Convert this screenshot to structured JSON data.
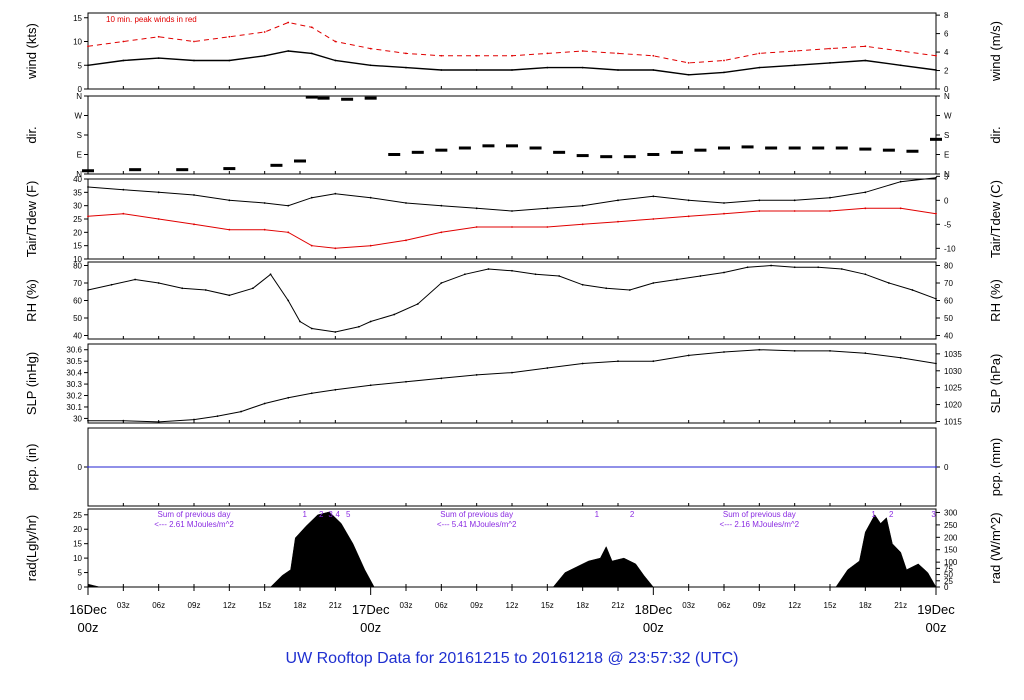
{
  "footer_title": "UW Rooftop Data for 20161215  to  20161218 @ 23:57:32  (UTC)",
  "colors": {
    "frame": "#000000",
    "peak": "#e00000",
    "dew": "#e00000",
    "precip": "#2020d0",
    "radnote": "#8a2be2",
    "day_label": "#e00000",
    "footer": "#1f2fd0"
  },
  "chart_data": [
    {
      "id": "wind",
      "type": "line",
      "ylabel": "wind (kts)",
      "ylabel_right": "wind (m/s)",
      "ylim": [
        0,
        16
      ],
      "yticks": [
        0,
        5,
        10,
        15
      ],
      "right_ticks": [
        {
          "label": "0",
          "value": 0
        },
        {
          "label": "2",
          "value": 3.888
        },
        {
          "label": "4",
          "value": 7.776
        },
        {
          "label": "6",
          "value": 11.664
        },
        {
          "label": "8",
          "value": 15.552
        }
      ],
      "note": "10 min. peak winds in red",
      "series": [
        {
          "role": "mean",
          "x": [
            0,
            3,
            6,
            9,
            12,
            15,
            17,
            19,
            21,
            24,
            27,
            30,
            33,
            36,
            39,
            42,
            45,
            48,
            51,
            54,
            57,
            60,
            63,
            66,
            69,
            72
          ],
          "values": [
            5,
            6,
            6.5,
            6,
            6,
            7,
            8,
            7.5,
            6,
            5,
            4.5,
            4,
            4,
            4,
            4.5,
            4.5,
            4,
            4,
            3,
            3.5,
            4.5,
            5,
            5.5,
            6,
            5,
            4
          ]
        },
        {
          "role": "peak",
          "x": [
            0,
            3,
            6,
            9,
            12,
            15,
            17,
            19,
            21,
            24,
            27,
            30,
            33,
            36,
            39,
            42,
            45,
            48,
            51,
            54,
            57,
            60,
            63,
            66,
            69,
            72
          ],
          "values": [
            9,
            10,
            11,
            10,
            11,
            12,
            14,
            13,
            10,
            8.5,
            7.5,
            7,
            7,
            7,
            7.5,
            8,
            7.5,
            7,
            5.5,
            6,
            7.5,
            8,
            8.5,
            9,
            8,
            7
          ]
        }
      ]
    },
    {
      "id": "dir",
      "type": "scatter",
      "ylabel": "dir.",
      "ylabel_right": "dir.",
      "ylim": [
        0,
        360
      ],
      "yticks": [
        {
          "label": "N",
          "value": 0
        },
        {
          "label": "E",
          "value": 90
        },
        {
          "label": "S",
          "value": 180
        },
        {
          "label": "W",
          "value": 270
        },
        {
          "label": "N",
          "value": 360
        }
      ],
      "right_ticks": [
        {
          "label": "N",
          "value": 0
        },
        {
          "label": "E",
          "value": 90
        },
        {
          "label": "S",
          "value": 180
        },
        {
          "label": "W",
          "value": 270
        },
        {
          "label": "N",
          "value": 360
        }
      ],
      "series": [
        {
          "role": "direction",
          "x": [
            0,
            4,
            8,
            12,
            16,
            18,
            19,
            20,
            22,
            24,
            26,
            28,
            30,
            32,
            34,
            36,
            38,
            40,
            42,
            44,
            46,
            48,
            50,
            52,
            54,
            56,
            58,
            60,
            62,
            64,
            66,
            68,
            70,
            72
          ],
          "values": [
            15,
            20,
            20,
            25,
            40,
            60,
            355,
            350,
            345,
            350,
            90,
            100,
            110,
            120,
            130,
            130,
            120,
            100,
            85,
            80,
            80,
            90,
            100,
            110,
            120,
            125,
            120,
            120,
            120,
            120,
            115,
            110,
            105,
            160
          ]
        }
      ]
    },
    {
      "id": "temp",
      "type": "line",
      "ylabel": "Tair/Tdew (F)",
      "ylabel_right": "Tair/Tdew (C)",
      "ylim": [
        10,
        40
      ],
      "yticks": [
        10,
        15,
        20,
        25,
        30,
        35,
        40
      ],
      "right_ticks": [
        {
          "label": "-10",
          "value": 14
        },
        {
          "label": "-5",
          "value": 23
        },
        {
          "label": "0",
          "value": 32
        },
        {
          "label": "5",
          "value": 41
        }
      ],
      "series": [
        {
          "role": "air",
          "x": [
            0,
            3,
            6,
            9,
            12,
            15,
            17,
            19,
            21,
            24,
            27,
            30,
            33,
            36,
            39,
            42,
            45,
            48,
            51,
            54,
            57,
            60,
            63,
            66,
            69,
            72
          ],
          "values": [
            37,
            36,
            35,
            34,
            32,
            31,
            30,
            33,
            34.5,
            33,
            31,
            30,
            29,
            28,
            29,
            30,
            32,
            33.5,
            32,
            31,
            32,
            32,
            33,
            35,
            39,
            40.5
          ]
        },
        {
          "role": "dew",
          "x": [
            0,
            3,
            6,
            9,
            12,
            15,
            17,
            19,
            21,
            24,
            27,
            30,
            33,
            36,
            39,
            42,
            45,
            48,
            51,
            54,
            57,
            60,
            63,
            66,
            69,
            72
          ],
          "values": [
            26,
            27,
            25,
            23,
            21,
            21,
            20,
            15,
            14,
            15,
            17,
            20,
            22,
            22,
            22,
            23,
            24,
            25,
            26,
            27,
            28,
            28,
            28,
            29,
            29,
            27
          ]
        }
      ]
    },
    {
      "id": "rh",
      "type": "line",
      "ylabel": "RH (%)",
      "ylabel_right": "RH (%)",
      "ylim": [
        38,
        82
      ],
      "yticks": [
        40,
        50,
        60,
        70,
        80
      ],
      "right_ticks": [
        {
          "label": "40",
          "value": 40
        },
        {
          "label": "50",
          "value": 50
        },
        {
          "label": "60",
          "value": 60
        },
        {
          "label": "70",
          "value": 70
        },
        {
          "label": "80",
          "value": 80
        }
      ],
      "series": [
        {
          "role": "rh",
          "x": [
            0,
            2,
            4,
            6,
            8,
            10,
            12,
            14,
            15.5,
            17,
            18,
            19,
            21,
            23,
            24,
            26,
            28,
            30,
            32,
            34,
            36,
            38,
            40,
            42,
            44,
            46,
            48,
            50,
            52,
            54,
            56,
            58,
            60,
            62,
            64,
            66,
            68,
            70,
            72
          ],
          "values": [
            66,
            69,
            72,
            70,
            67,
            66,
            63,
            67,
            75,
            60,
            48,
            44,
            42,
            45,
            48,
            52,
            58,
            70,
            75,
            78,
            77,
            75,
            74,
            69,
            67,
            66,
            70,
            72,
            74,
            76,
            79,
            80,
            79,
            79,
            78,
            75,
            70,
            66,
            61
          ]
        }
      ]
    },
    {
      "id": "slp",
      "type": "line",
      "ylabel": "SLP (inHg)",
      "ylabel_right": "SLP (hPa)",
      "ylim": [
        29.96,
        30.65
      ],
      "yticks": [
        30.0,
        30.1,
        30.2,
        30.3,
        30.4,
        30.5,
        30.6
      ],
      "right_ticks": [
        {
          "label": "1015",
          "value": 29.973
        },
        {
          "label": "1020",
          "value": 30.121
        },
        {
          "label": "1025",
          "value": 30.269
        },
        {
          "label": "1030",
          "value": 30.416
        },
        {
          "label": "1035",
          "value": 30.564
        }
      ],
      "series": [
        {
          "role": "slp",
          "x": [
            0,
            3,
            6,
            9,
            11,
            13,
            15,
            17,
            19,
            21,
            24,
            27,
            30,
            33,
            36,
            39,
            42,
            45,
            48,
            51,
            54,
            57,
            60,
            63,
            66,
            69,
            72
          ],
          "values": [
            29.98,
            29.98,
            29.97,
            29.99,
            30.02,
            30.06,
            30.13,
            30.18,
            30.22,
            30.25,
            30.29,
            30.32,
            30.35,
            30.38,
            30.4,
            30.44,
            30.48,
            30.5,
            30.5,
            30.55,
            30.58,
            30.6,
            30.59,
            30.59,
            30.57,
            30.53,
            30.48
          ]
        }
      ]
    },
    {
      "id": "pcp",
      "type": "line",
      "ylabel": "pcp. (in)",
      "ylabel_right": "pcp. (mm)",
      "ylim": [
        -1,
        1
      ],
      "yticks": [
        0
      ],
      "right_ticks": [
        {
          "label": "0",
          "value": 0
        }
      ],
      "series": [
        {
          "role": "pcp",
          "x": [
            0,
            72
          ],
          "values": [
            0,
            0
          ]
        }
      ]
    },
    {
      "id": "rad",
      "type": "area",
      "ylabel": "rad(Lgly/hr)",
      "ylabel_right": "rad (W/m^2)",
      "ylim": [
        0,
        27
      ],
      "yticks": [
        0,
        5,
        10,
        15,
        20,
        25
      ],
      "right_ticks": [
        {
          "label": "0",
          "value": 0
        },
        {
          "label": "25",
          "value": 2.15
        },
        {
          "label": "50",
          "value": 4.3
        },
        {
          "label": "75",
          "value": 6.45
        },
        {
          "label": "100",
          "value": 8.6
        },
        {
          "label": "150",
          "value": 12.9
        },
        {
          "label": "200",
          "value": 17.2
        },
        {
          "label": "250",
          "value": 21.5
        },
        {
          "label": "300",
          "value": 25.8
        }
      ],
      "annotations": [
        {
          "line1": "Sum of previous day",
          "line2": "<--- 2.61 MJoules/m^2",
          "x": 9
        },
        {
          "line1": "Sum of previous day",
          "line2": "<--- 5.41 MJoules/m^2",
          "x": 33
        },
        {
          "line1": "Sum of previous day",
          "line2": "<--- 2.16 MJoules/m^2",
          "x": 57
        }
      ],
      "markers": [
        {
          "label": "1",
          "x": 18.4
        },
        {
          "label": "2",
          "x": 19.8
        },
        {
          "label": "3",
          "x": 20.6
        },
        {
          "label": "4",
          "x": 21.2
        },
        {
          "label": "5",
          "x": 22.1
        },
        {
          "label": "1",
          "x": 43.2
        },
        {
          "label": "2",
          "x": 46.2
        },
        {
          "label": "1",
          "x": 66.7
        },
        {
          "label": "2",
          "x": 68.2
        },
        {
          "label": "3",
          "x": 71.8
        }
      ],
      "series": [
        {
          "role": "radiation",
          "x": [
            0,
            0.5,
            1,
            15.5,
            16.5,
            17.2,
            17.6,
            18.5,
            19.5,
            20.5,
            21.5,
            22.5,
            23.5,
            24.3,
            39.5,
            40.5,
            41.5,
            42.5,
            43.5,
            44,
            44.5,
            45.5,
            46.5,
            47.2,
            48,
            63.5,
            64.5,
            65.5,
            66,
            66.8,
            67.3,
            67.8,
            68.3,
            69,
            69.5,
            70.5,
            71.3,
            72
          ],
          "values": [
            1,
            0.5,
            0,
            0,
            4,
            6,
            17,
            21,
            25,
            26,
            22,
            15,
            6,
            0,
            0,
            5,
            7,
            9,
            10,
            14,
            9,
            10,
            8,
            4,
            0,
            0,
            6,
            9,
            19,
            25,
            22,
            24,
            15,
            12,
            6,
            8,
            5,
            0
          ]
        }
      ]
    }
  ],
  "x_axis": {
    "range": [
      0,
      72
    ],
    "hour_ticks": [
      {
        "label": "03z",
        "x": 3
      },
      {
        "label": "06z",
        "x": 6
      },
      {
        "label": "09z",
        "x": 9
      },
      {
        "label": "12z",
        "x": 12
      },
      {
        "label": "15z",
        "x": 15
      },
      {
        "label": "18z",
        "x": 18
      },
      {
        "label": "21z",
        "x": 21
      },
      {
        "label": "03z",
        "x": 27
      },
      {
        "label": "06z",
        "x": 30
      },
      {
        "label": "09z",
        "x": 33
      },
      {
        "label": "12z",
        "x": 36
      },
      {
        "label": "15z",
        "x": 39
      },
      {
        "label": "18z",
        "x": 42
      },
      {
        "label": "21z",
        "x": 45
      },
      {
        "label": "03z",
        "x": 51
      },
      {
        "label": "06z",
        "x": 54
      },
      {
        "label": "09z",
        "x": 57
      },
      {
        "label": "12z",
        "x": 60
      },
      {
        "label": "15z",
        "x": 63
      },
      {
        "label": "18z",
        "x": 66
      },
      {
        "label": "21z",
        "x": 69
      }
    ],
    "day_ticks": [
      {
        "date": "16Dec",
        "time": "00z",
        "x": 0
      },
      {
        "date": "17Dec",
        "time": "00z",
        "x": 24
      },
      {
        "date": "18Dec",
        "time": "00z",
        "x": 48
      },
      {
        "date": "19Dec",
        "time": "00z",
        "x": 72
      }
    ]
  }
}
